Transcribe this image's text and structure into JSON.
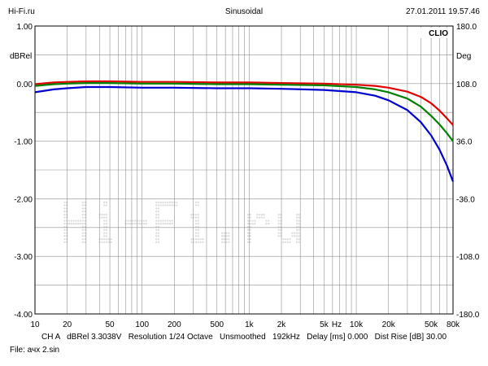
{
  "header": {
    "left": "Hi-Fi.ru",
    "center": "Sinusoidal",
    "right": "27.01.2011 19.57.46"
  },
  "footer": {
    "settings": "CH A   dBRel 3.3038V   Resolution 1/24 Octave   Unsmoothed   192kHz   Delay [ms] 0.000   Dist Rise [dB] 30.00",
    "file": "File: ачх 2.sin"
  },
  "chart_data": {
    "type": "line",
    "brand": "CLIO",
    "watermark": "Hi-Fi.ru",
    "y_left_unit": "dBRel",
    "y_right_unit": "Deg",
    "x_unit": "Hz",
    "x_scale": "log",
    "xlim": [
      10,
      80000
    ],
    "ylim": [
      -4.0,
      1.0
    ],
    "y_right_lim": [
      -180.0,
      180.0
    ],
    "grid": true,
    "x_ticks": [
      10,
      20,
      50,
      100,
      200,
      500,
      1000,
      2000,
      5000,
      10000,
      20000,
      50000,
      80000
    ],
    "x_tick_labels": [
      "10",
      "20",
      "50",
      "100",
      "200",
      "500",
      "1k",
      "2k",
      "5k",
      "10k",
      "20k",
      "50k",
      "80k"
    ],
    "y_ticks": [
      1.0,
      0.0,
      -1.0,
      -2.0,
      -3.0,
      -4.0
    ],
    "y_tick_labels": [
      "1.00",
      "0.00",
      "-1.00",
      "-2.00",
      "-3.00",
      "-4.00"
    ],
    "y_right_ticks": [
      180.0,
      108.0,
      36.0,
      -36.0,
      -108.0,
      -180.0
    ],
    "y_right_tick_labels": [
      "180.0",
      "108.0",
      "36.0",
      "-36.0",
      "-108.0",
      "-180.0"
    ],
    "series": [
      {
        "color": "#e00000",
        "x": [
          10,
          15,
          20,
          30,
          50,
          100,
          200,
          500,
          1000,
          2000,
          5000,
          10000,
          15000,
          20000,
          30000,
          40000,
          50000,
          60000,
          70000,
          80000
        ],
        "y": [
          -0.01,
          0.02,
          0.03,
          0.04,
          0.04,
          0.03,
          0.03,
          0.02,
          0.02,
          0.01,
          0.0,
          -0.02,
          -0.04,
          -0.07,
          -0.14,
          -0.23,
          -0.34,
          -0.47,
          -0.6,
          -0.72
        ]
      },
      {
        "color": "#008000",
        "x": [
          10,
          15,
          20,
          30,
          50,
          100,
          200,
          500,
          1000,
          2000,
          5000,
          10000,
          15000,
          20000,
          30000,
          40000,
          50000,
          60000,
          70000,
          80000
        ],
        "y": [
          -0.04,
          -0.01,
          0.0,
          0.01,
          0.01,
          0.0,
          0.0,
          -0.01,
          -0.01,
          -0.02,
          -0.03,
          -0.06,
          -0.1,
          -0.15,
          -0.26,
          -0.4,
          -0.56,
          -0.71,
          -0.86,
          -1.0
        ]
      },
      {
        "color": "#0000d0",
        "x": [
          10,
          15,
          20,
          30,
          50,
          100,
          200,
          500,
          1000,
          2000,
          5000,
          10000,
          15000,
          20000,
          30000,
          40000,
          50000,
          60000,
          70000,
          80000
        ],
        "y": [
          -0.15,
          -0.1,
          -0.08,
          -0.06,
          -0.06,
          -0.07,
          -0.07,
          -0.08,
          -0.08,
          -0.09,
          -0.11,
          -0.15,
          -0.21,
          -0.29,
          -0.46,
          -0.67,
          -0.9,
          -1.15,
          -1.42,
          -1.7
        ]
      }
    ]
  }
}
